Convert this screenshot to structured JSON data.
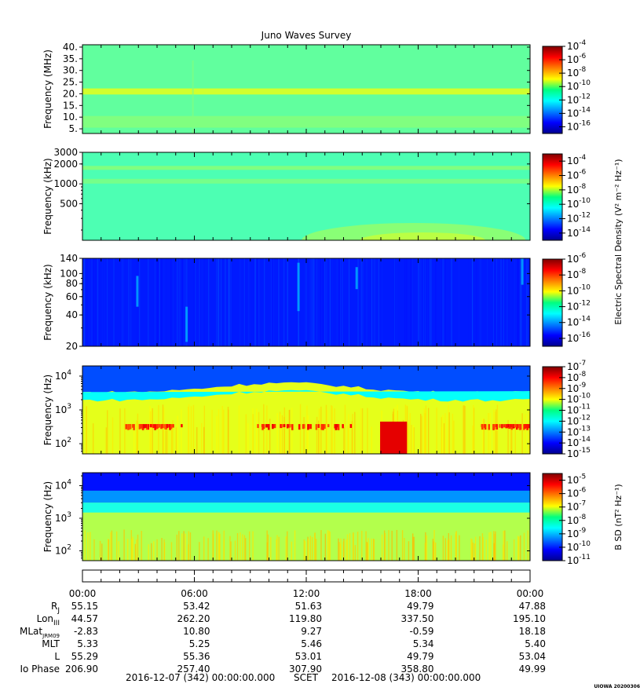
{
  "title": "Juno Waves Survey",
  "credit": "UIOWA 20200306",
  "chart_data": [
    {
      "type": "heatmap",
      "ylabel": "Frequency (MHz)",
      "yscale": "linear",
      "ylim": [
        3,
        41
      ],
      "yticks": [
        {
          "v": 5,
          "t": "5."
        },
        {
          "v": 10,
          "t": "10."
        },
        {
          "v": 15,
          "t": "15."
        },
        {
          "v": 20,
          "t": "20."
        },
        {
          "v": 25,
          "t": "25."
        },
        {
          "v": 30,
          "t": "30."
        },
        {
          "v": 35,
          "t": "35."
        },
        {
          "v": 40,
          "t": "40."
        }
      ],
      "colorbar": {
        "range_exp": [
          -17,
          -4
        ],
        "ticks": [
          -4,
          -6,
          -8,
          -10,
          -12,
          -14,
          -16
        ]
      },
      "base_level": 0.47,
      "bands": [
        {
          "y": 21,
          "w": 1.3,
          "level": 0.58
        },
        {
          "y": 8,
          "w": 2.5,
          "level": 0.5
        }
      ]
    },
    {
      "type": "heatmap",
      "ylabel": "Frequency (kHz)",
      "yscale": "log",
      "ylim": [
        140,
        3000
      ],
      "yticks": [
        {
          "v": 500,
          "t": "500"
        },
        {
          "v": 1000,
          "t": "1000"
        },
        {
          "v": 2000,
          "t": "2000"
        },
        {
          "v": 3000,
          "t": "3000"
        }
      ],
      "colorbar": {
        "range_exp": [
          -15,
          -3
        ],
        "ticks": [
          -4,
          -6,
          -8,
          -10,
          -12,
          -14
        ]
      },
      "colorbar_label": "Electric Spectral Density (V² m⁻² Hz⁻¹)",
      "base_level": 0.45,
      "bands": [
        {
          "y": 1750,
          "w": 120,
          "level": 0.5
        },
        {
          "y": 1100,
          "w": 90,
          "level": 0.49
        }
      ]
    },
    {
      "type": "heatmap",
      "ylabel": "Frequency (kHz)",
      "yscale": "log",
      "ylim": [
        20,
        140
      ],
      "yticks": [
        {
          "v": 20,
          "t": "20"
        },
        {
          "v": 40,
          "t": "40"
        },
        {
          "v": 60,
          "t": "60"
        },
        {
          "v": 80,
          "t": "80"
        },
        {
          "v": 100,
          "t": "100"
        },
        {
          "v": 140,
          "t": "140"
        }
      ],
      "colorbar": {
        "range_exp": [
          -17,
          -6
        ],
        "ticks": [
          -6,
          -8,
          -10,
          -12,
          -14,
          -16
        ]
      },
      "base_level": 0.15
    },
    {
      "type": "heatmap",
      "ylabel": "Frequency (Hz)",
      "yscale": "log",
      "ylim": [
        50,
        20000
      ],
      "yticks": [
        {
          "v": 100,
          "t": "10",
          "sup": "2"
        },
        {
          "v": 1000,
          "t": "10",
          "sup": "3"
        },
        {
          "v": 10000,
          "t": "10",
          "sup": "4"
        }
      ],
      "colorbar": {
        "range_exp": [
          -15,
          -7
        ],
        "ticks": [
          -7,
          -8,
          -9,
          -10,
          -11,
          -12,
          -13,
          -14,
          -15
        ]
      },
      "base_level": 0.6
    },
    {
      "type": "heatmap",
      "ylabel": "Frequency (Hz)",
      "yscale": "log",
      "ylim": [
        50,
        25000
      ],
      "yticks": [
        {
          "v": 100,
          "t": "10",
          "sup": "2"
        },
        {
          "v": 1000,
          "t": "10",
          "sup": "3"
        },
        {
          "v": 10000,
          "t": "10",
          "sup": "4"
        }
      ],
      "colorbar": {
        "range_exp": [
          -11,
          -4.5
        ],
        "ticks": [
          -5,
          -6,
          -7,
          -8,
          -9,
          -10,
          -11
        ]
      },
      "colorbar_label": "B SD (nT² Hz⁻¹)",
      "base_level": 0.55
    }
  ],
  "ephemeris": {
    "times": [
      "00:00",
      "06:00",
      "12:00",
      "18:00",
      "00:00"
    ],
    "rows": [
      {
        "label": "R",
        "sub": "J",
        "values": [
          "55.15",
          "53.42",
          "51.63",
          "49.79",
          "47.88"
        ]
      },
      {
        "label": "Lon",
        "sub": "III",
        "values": [
          "44.57",
          "262.20",
          "119.80",
          "337.50",
          "195.10"
        ]
      },
      {
        "label": "MLat",
        "sub": "JRM09",
        "values": [
          "-2.83",
          "10.80",
          "9.27",
          "-0.59",
          "18.18"
        ]
      },
      {
        "label": "MLT",
        "sub": "",
        "values": [
          "5.33",
          "5.25",
          "5.46",
          "5.34",
          "5.40"
        ]
      },
      {
        "label": "L",
        "sub": "",
        "values": [
          "55.29",
          "55.36",
          "53.01",
          "49.79",
          "53.04"
        ]
      },
      {
        "label": "Io Phase",
        "sub": "",
        "values": [
          "206.90",
          "257.40",
          "307.90",
          "358.80",
          "49.99"
        ]
      }
    ],
    "span": {
      "start": "2016-12-07 (342) 00:00:00.000",
      "mid": "SCET",
      "end": "2016-12-08 (343) 00:00:00.000"
    }
  }
}
